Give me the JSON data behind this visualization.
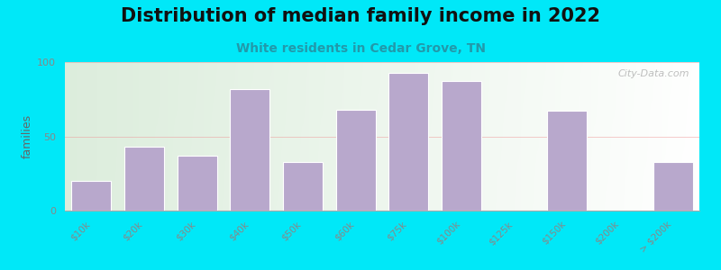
{
  "title": "Distribution of median family income in 2022",
  "subtitle": "White residents in Cedar Grove, TN",
  "ylabel": "families",
  "categories": [
    "$10k",
    "$20k",
    "$30k",
    "$40k",
    "$50k",
    "$60k",
    "$75k",
    "$100k",
    "$125k",
    "$150k",
    "$200k",
    "> $200k"
  ],
  "values": [
    20,
    43,
    37,
    82,
    33,
    68,
    93,
    87,
    0,
    67,
    0,
    33
  ],
  "bar_color": "#b8a8cc",
  "bar_edgecolor": "#ffffff",
  "background_outer": "#00e8f8",
  "background_plot_left_top": "#ddeedd",
  "background_plot_right": "#f0f4f0",
  "title_color": "#111111",
  "subtitle_color": "#2299aa",
  "axis_color": "#666666",
  "tick_color": "#888888",
  "grid_color": "#ee9999",
  "grid_alpha": 0.6,
  "ylim": [
    0,
    100
  ],
  "yticks": [
    0,
    50,
    100
  ],
  "watermark": "City-Data.com",
  "title_fontsize": 15,
  "subtitle_fontsize": 10,
  "ylabel_fontsize": 9,
  "tick_fontsize": 7.5
}
